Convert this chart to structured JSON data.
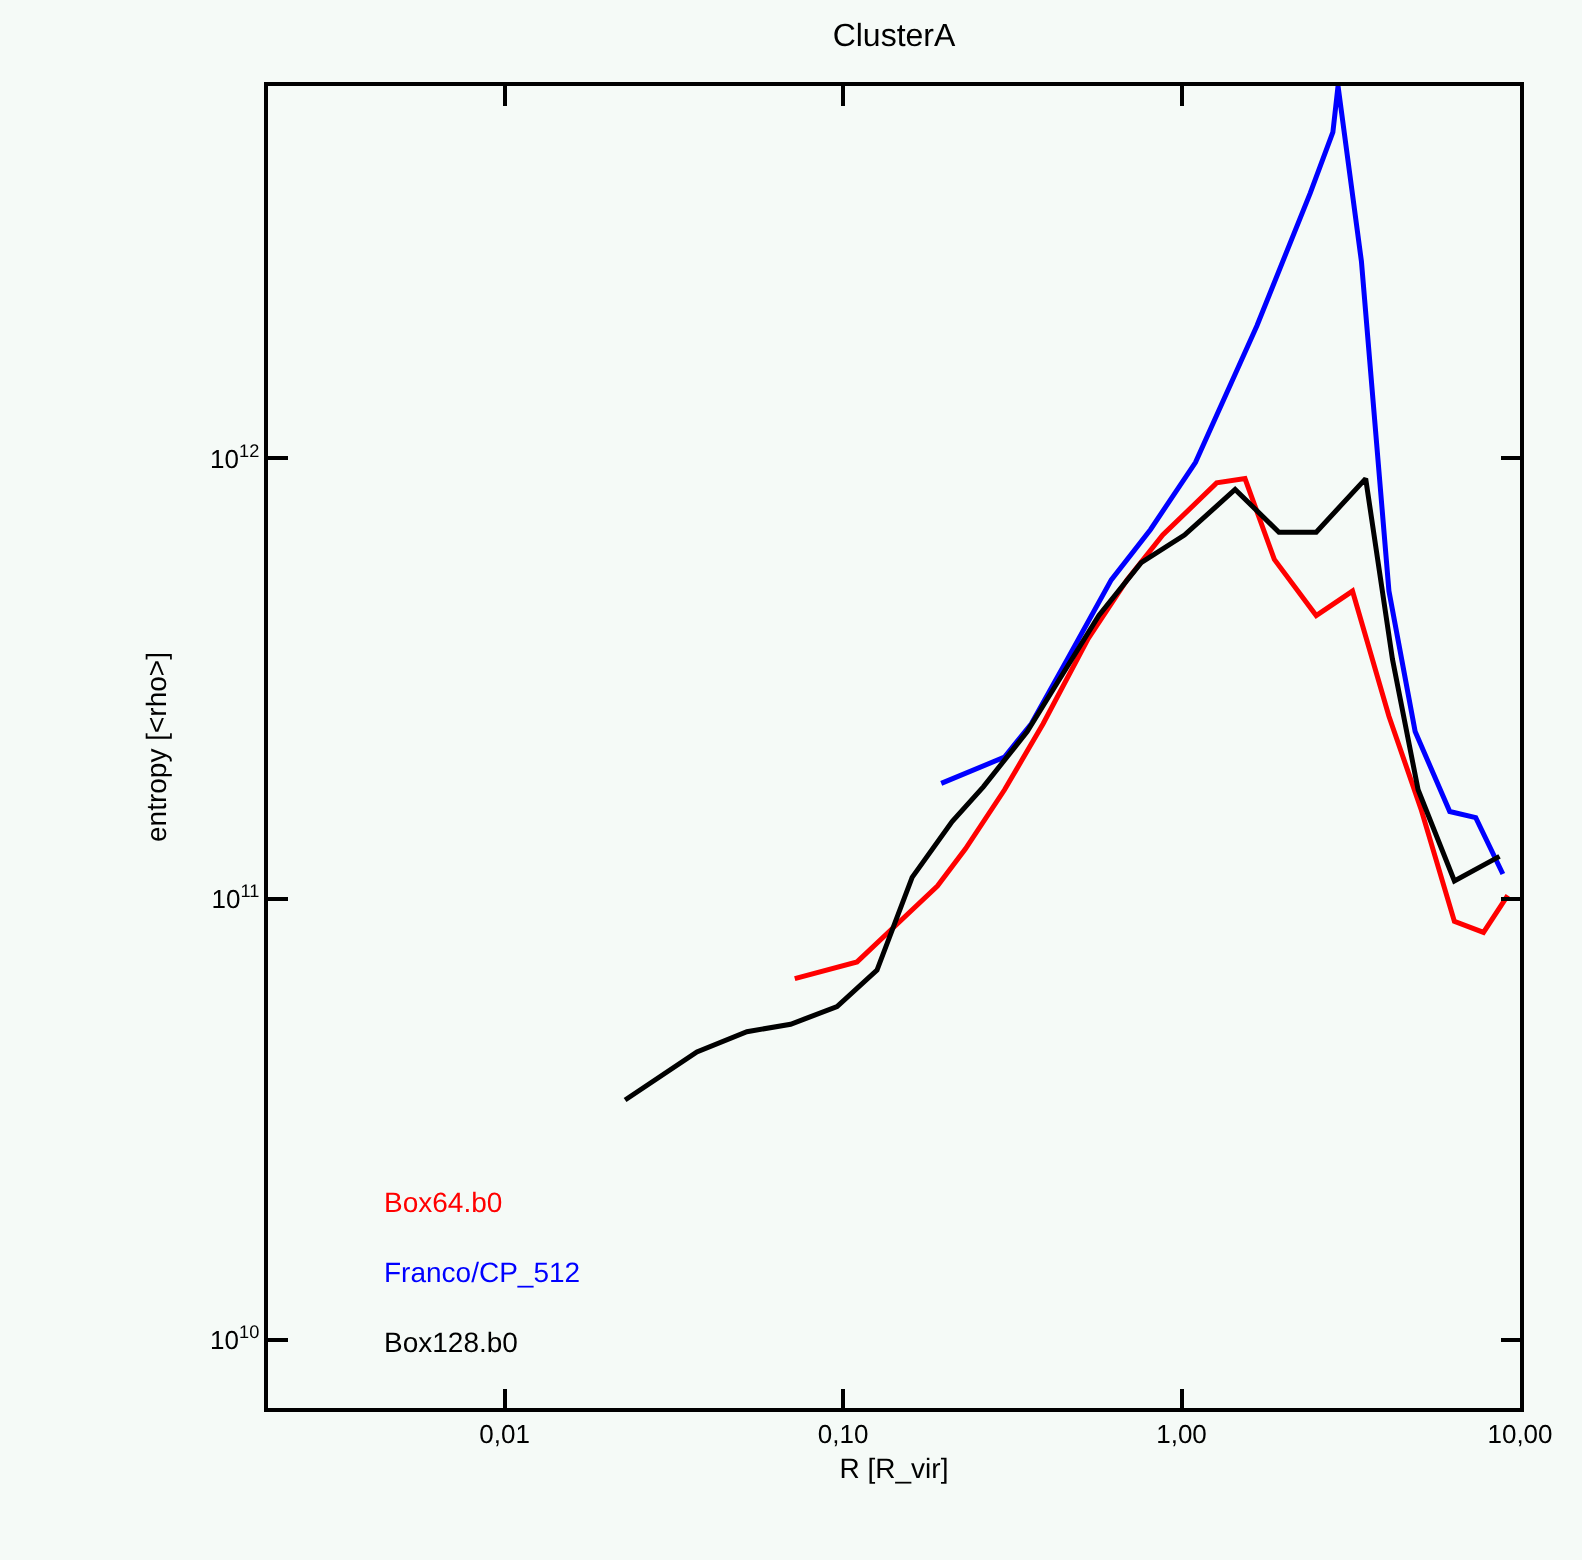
{
  "chart_data": {
    "type": "line",
    "title": "ClusterA",
    "xlabel": "R [R_vir]",
    "ylabel": "entropy [<rho>]",
    "log": "xy",
    "grid": false,
    "legend": "bottom left",
    "line_style": "solid",
    "marker": "none",
    "xlim": [
      0.002,
      10
    ],
    "ylim": [
      7000000000.0,
      7000000000000.0
    ],
    "xticks": [
      {
        "value": 0.01,
        "label": "0,01"
      },
      {
        "value": 0.1,
        "label": "0,10"
      },
      {
        "value": 1,
        "label": "1,00"
      },
      {
        "value": 10,
        "label": "10,00"
      }
    ],
    "yticks": [
      {
        "value": 10000000000.0,
        "label": "10$^{10}$"
      },
      {
        "value": 100000000000.0,
        "label": "10$^{11}$"
      },
      {
        "value": 1000000000000.0,
        "label": "10$^{12}$"
      }
    ],
    "series": [
      {
        "name": "Box64.b0",
        "color": "#ff0000",
        "x": [
          0.072,
          0.11,
          0.145,
          0.19,
          0.23,
          0.3,
          0.39,
          0.53,
          0.69,
          0.88,
          1.27,
          1.54,
          1.88,
          2.5,
          3.2,
          4.1,
          5.1,
          6.4,
          7.8,
          9.2
        ],
        "values": [
          66000000000.0,
          72000000000.0,
          88000000000.0,
          107000000000.0,
          130000000000.0,
          177000000000.0,
          250000000000.0,
          390000000000.0,
          530000000000.0,
          670000000000.0,
          880000000000.0,
          900000000000.0,
          590000000000.0,
          440000000000.0,
          500000000000.0,
          260000000000.0,
          160000000000.0,
          89000000000.0,
          84000000000.0,
          102000000000.0
        ]
      },
      {
        "name": "Franco/CP_512",
        "color": "#0000ff",
        "x": [
          0.195,
          0.3,
          0.36,
          0.46,
          0.62,
          0.81,
          1.1,
          1.67,
          2.4,
          2.8,
          2.9,
          3.4,
          4.1,
          4.9,
          6.2,
          7.4,
          8.9
        ],
        "values": [
          183000000000.0,
          210000000000.0,
          250000000000.0,
          350000000000.0,
          530000000000.0,
          690000000000.0,
          980000000000.0,
          2000000000000.0,
          4000000000000.0,
          5500000000000.0,
          7000000000000.0,
          2800000000000.0,
          500000000000.0,
          240000000000.0,
          158000000000.0,
          153000000000.0,
          114000000000.0
        ]
      },
      {
        "name": "Box128.b0",
        "color": "#000000",
        "x": [
          0.0227,
          0.037,
          0.052,
          0.07,
          0.096,
          0.126,
          0.16,
          0.21,
          0.26,
          0.35,
          0.43,
          0.57,
          0.76,
          1.02,
          1.44,
          1.94,
          2.5,
          3.5,
          4.2,
          5.0,
          6.4,
          8.7
        ],
        "values": [
          35000000000.0,
          45000000000.0,
          50000000000.0,
          52000000000.0,
          57000000000.0,
          69000000000.0,
          112000000000.0,
          150000000000.0,
          180000000000.0,
          240000000000.0,
          310000000000.0,
          440000000000.0,
          580000000000.0,
          670000000000.0,
          850000000000.0,
          680000000000.0,
          680000000000.0,
          900000000000.0,
          350000000000.0,
          177000000000.0,
          110000000000.0,
          125000000000.0
        ]
      }
    ]
  }
}
